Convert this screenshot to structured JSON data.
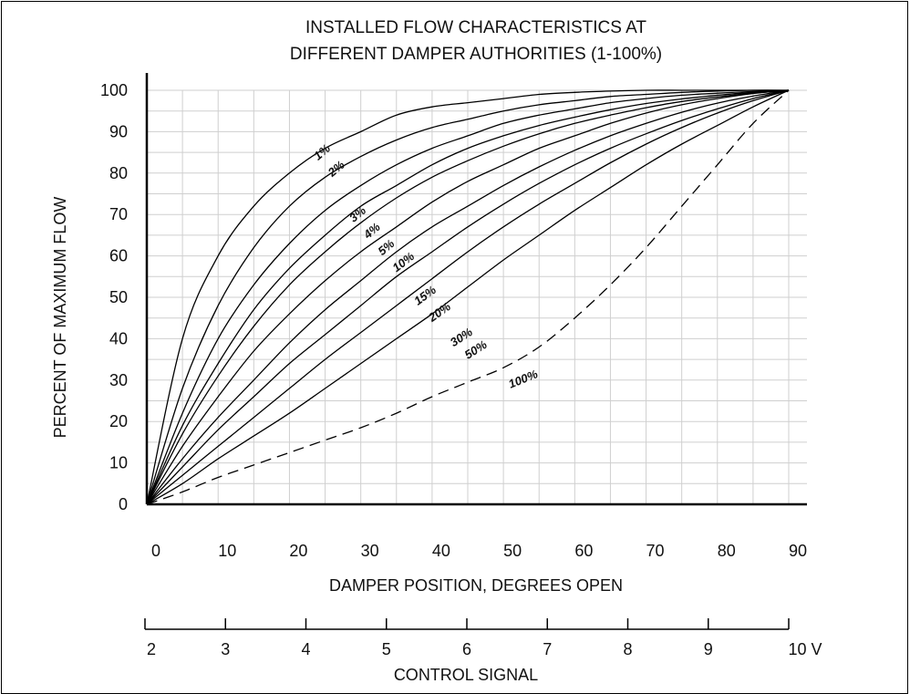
{
  "chart_data": {
    "type": "line",
    "title": [
      "INSTALLED FLOW CHARACTERISTICS AT",
      "DIFFERENT DAMPER AUTHORITIES (1-100%)"
    ],
    "xlabel": "DAMPER POSITION, DEGREES OPEN",
    "ylabel": "PERCENT OF MAXIMUM FLOW",
    "secondary_xlabel": "CONTROL SIGNAL",
    "xlim": [
      0,
      90
    ],
    "ylim": [
      0,
      100
    ],
    "grid": true,
    "x_ticks": [
      "0",
      "10",
      "20",
      "30",
      "40",
      "50",
      "60",
      "70",
      "80",
      "90"
    ],
    "y_ticks": [
      "0",
      "10",
      "20",
      "30",
      "40",
      "50",
      "60",
      "70",
      "80",
      "90",
      "100"
    ],
    "secondary_ticks": [
      "2",
      "3",
      "4",
      "5",
      "6",
      "7",
      "8",
      "9",
      "10 V"
    ],
    "x": [
      0,
      5,
      10,
      15,
      20,
      25,
      30,
      35,
      40,
      45,
      50,
      55,
      60,
      65,
      70,
      75,
      80,
      85,
      90
    ],
    "series": [
      {
        "name": "1%",
        "dashed": false,
        "values": [
          0,
          40,
          60,
          72,
          80,
          86,
          90,
          94,
          96,
          97,
          98,
          99,
          99.5,
          99.8,
          100,
          100,
          100,
          100,
          100
        ]
      },
      {
        "name": "2%",
        "dashed": false,
        "values": [
          0,
          28,
          48,
          62,
          72,
          79,
          84,
          88,
          91,
          93,
          95,
          96.5,
          97.5,
          98.5,
          99,
          99.5,
          99.8,
          100,
          100
        ]
      },
      {
        "name": "3%",
        "dashed": false,
        "values": [
          0,
          22,
          40,
          53,
          63,
          71,
          77,
          82,
          86,
          89,
          92,
          94,
          95.5,
          97,
          98,
          98.8,
          99.3,
          99.7,
          100
        ]
      },
      {
        "name": "4%",
        "dashed": false,
        "values": [
          0,
          19,
          34,
          47,
          57,
          65,
          72,
          77,
          82,
          86,
          89,
          91.5,
          93.5,
          95.3,
          96.8,
          97.9,
          98.8,
          99.5,
          100
        ]
      },
      {
        "name": "5%",
        "dashed": false,
        "values": [
          0,
          17,
          31,
          43,
          53,
          61,
          68,
          74,
          79,
          83,
          86.5,
          89.5,
          92,
          94,
          95.8,
          97.3,
          98.4,
          99.3,
          100
        ]
      },
      {
        "name": "10%",
        "dashed": false,
        "values": [
          0,
          14,
          26,
          37,
          46,
          54,
          61,
          67,
          73,
          78,
          82,
          86,
          89,
          92,
          94.5,
          96.5,
          98,
          99.2,
          100
        ]
      },
      {
        "name": "15%",
        "dashed": false,
        "values": [
          0,
          11,
          21,
          30,
          39,
          47,
          54,
          61,
          67,
          72,
          77,
          81.5,
          85.5,
          89,
          92,
          94.7,
          96.9,
          98.6,
          100
        ]
      },
      {
        "name": "20%",
        "dashed": false,
        "values": [
          0,
          9,
          18,
          26,
          34,
          41,
          48,
          55,
          61,
          67,
          72.5,
          77.5,
          82,
          86,
          89.5,
          92.7,
          95.5,
          98,
          100
        ]
      },
      {
        "name": "30%",
        "dashed": false,
        "values": [
          0,
          7,
          14,
          21,
          28,
          35,
          41.5,
          48,
          54.5,
          61,
          67,
          72.5,
          77.5,
          82.5,
          87,
          91,
          94.5,
          97.5,
          100
        ]
      },
      {
        "name": "50%",
        "dashed": false,
        "values": [
          0,
          5,
          11,
          16.5,
          22,
          28,
          34,
          40,
          46,
          52.5,
          59,
          65,
          71,
          76.5,
          82,
          87,
          91.5,
          96,
          100
        ]
      },
      {
        "name": "100%",
        "dashed": true,
        "values": [
          0,
          3,
          6.5,
          9.5,
          12.5,
          15.5,
          18.5,
          22,
          26,
          29.5,
          33,
          38,
          45,
          53,
          62,
          72,
          82,
          92,
          100
        ]
      }
    ],
    "curve_labels": [
      "1%",
      "2%",
      "3%",
      "4%",
      "5%",
      "10%",
      "15%",
      "20%",
      "30%",
      "50%",
      "100%"
    ]
  }
}
